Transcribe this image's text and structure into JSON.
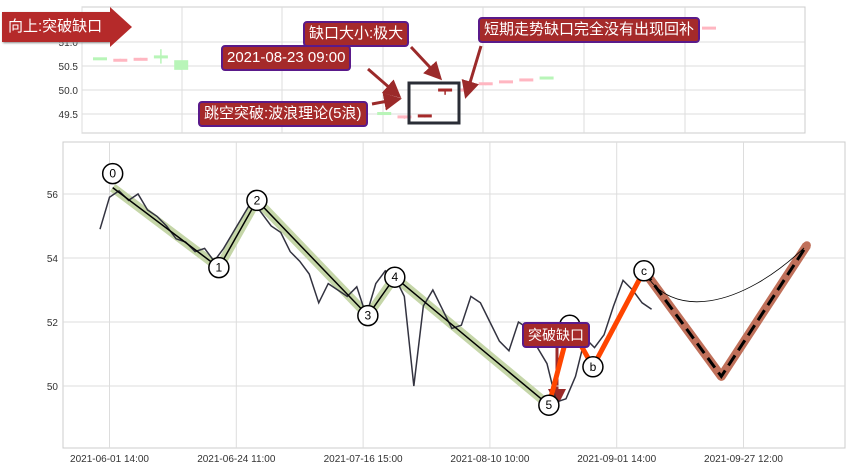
{
  "annotations": {
    "direction": "向上:突破缺口",
    "gap_size": "缺口大小:极大",
    "datetime": "2021-08-23 09:00",
    "breakout": "跳空突破:波浪理论(5浪)",
    "not_filled": "短期走势缺口完全没有出现回补",
    "breakout_small": "突破缺口"
  },
  "colors": {
    "up": "#ffb6c1",
    "down": "#b8f5b8",
    "gap_candle": "#a52a2a",
    "wave_line": "#000000",
    "wave_band": "#c5d6a8",
    "abc_line": "#ff4500",
    "projection_band": "#c0705a",
    "price_line": "#333340"
  },
  "chart_data": [
    {
      "type": "candlestick",
      "yticks": [
        51.0,
        50.5,
        50.0,
        49.5
      ],
      "ylim": [
        49.3,
        51.7
      ],
      "candles": [
        {
          "i": 0,
          "o": 50.65,
          "h": 50.67,
          "l": 50.63,
          "c": 50.66,
          "dir": "down"
        },
        {
          "i": 1,
          "o": 50.62,
          "h": 50.65,
          "l": 50.6,
          "c": 50.63,
          "dir": "up"
        },
        {
          "i": 2,
          "o": 50.64,
          "h": 50.67,
          "l": 50.62,
          "c": 50.65,
          "dir": "up"
        },
        {
          "i": 3,
          "o": 50.7,
          "h": 50.85,
          "l": 50.55,
          "c": 50.69,
          "dir": "down"
        },
        {
          "i": 4,
          "o": 50.6,
          "h": 50.6,
          "l": 50.42,
          "c": 50.42,
          "dir": "down"
        },
        {
          "i": 14,
          "o": 49.52,
          "h": 49.53,
          "l": 49.48,
          "c": 49.49,
          "dir": "down"
        },
        {
          "i": 15,
          "o": 49.44,
          "h": 49.47,
          "l": 49.4,
          "c": 49.45,
          "dir": "up"
        },
        {
          "i": 16,
          "o": 49.46,
          "h": 49.48,
          "l": 49.43,
          "c": 49.47,
          "dir": "gap"
        },
        {
          "i": 17,
          "o": 49.98,
          "h": 50.02,
          "l": 49.9,
          "c": 50.01,
          "dir": "gap"
        },
        {
          "i": 18,
          "o": 49.99,
          "h": 50.02,
          "l": 49.98,
          "c": 50.01,
          "dir": "up"
        },
        {
          "i": 19,
          "o": 50.1,
          "h": 50.14,
          "l": 50.1,
          "c": 50.14,
          "dir": "up"
        },
        {
          "i": 20,
          "o": 50.17,
          "h": 50.19,
          "l": 50.16,
          "c": 50.18,
          "dir": "up"
        },
        {
          "i": 21,
          "o": 50.21,
          "h": 50.23,
          "l": 50.2,
          "c": 50.22,
          "dir": "up"
        },
        {
          "i": 22,
          "o": 50.26,
          "h": 50.27,
          "l": 50.24,
          "c": 50.25,
          "dir": "down"
        },
        {
          "i": 30,
          "o": 51.29,
          "h": 51.31,
          "l": 51.28,
          "c": 51.3,
          "dir": "up"
        }
      ]
    },
    {
      "type": "line",
      "yticks": [
        56,
        54,
        52,
        50
      ],
      "ylim": [
        48.2,
        57.6
      ],
      "xtick_labels": [
        {
          "i": 3,
          "label": "2021-06-01 14:00"
        },
        {
          "i": 43,
          "label": "2021-06-24 11:00"
        },
        {
          "i": 83,
          "label": "2021-07-16 15:00"
        },
        {
          "i": 123,
          "label": "2021-08-10 10:00"
        },
        {
          "i": 163,
          "label": "2021-09-01 14:00"
        },
        {
          "i": 203,
          "label": "2021-09-27 12:00"
        }
      ],
      "price": [
        [
          0,
          54.9
        ],
        [
          3,
          55.9
        ],
        [
          6,
          56.1
        ],
        [
          9,
          55.8
        ],
        [
          12,
          56.0
        ],
        [
          15,
          55.5
        ],
        [
          18,
          55.3
        ],
        [
          21,
          55.0
        ],
        [
          24,
          54.6
        ],
        [
          27,
          54.5
        ],
        [
          30,
          54.2
        ],
        [
          33,
          54.3
        ],
        [
          36,
          53.9
        ],
        [
          39,
          54.3
        ],
        [
          42,
          54.8
        ],
        [
          45,
          55.3
        ],
        [
          48,
          55.8
        ],
        [
          51,
          55.4
        ],
        [
          54,
          55.0
        ],
        [
          57,
          54.8
        ],
        [
          60,
          54.2
        ],
        [
          63,
          53.9
        ],
        [
          66,
          53.5
        ],
        [
          69,
          52.6
        ],
        [
          72,
          53.2
        ],
        [
          75,
          53.0
        ],
        [
          78,
          52.8
        ],
        [
          81,
          53.1
        ],
        [
          84,
          52.2
        ],
        [
          87,
          53.2
        ],
        [
          90,
          53.6
        ],
        [
          93,
          53.4
        ],
        [
          96,
          52.8
        ],
        [
          99,
          50.0
        ],
        [
          102,
          52.5
        ],
        [
          105,
          53.0
        ],
        [
          108,
          52.4
        ],
        [
          111,
          51.8
        ],
        [
          114,
          51.9
        ],
        [
          117,
          52.8
        ],
        [
          120,
          52.6
        ],
        [
          123,
          52.0
        ],
        [
          126,
          51.4
        ],
        [
          129,
          51.1
        ],
        [
          132,
          52.0
        ],
        [
          135,
          51.8
        ],
        [
          138,
          51.2
        ],
        [
          141,
          50.7
        ],
        [
          144,
          49.5
        ],
        [
          147,
          49.6
        ],
        [
          150,
          50.3
        ],
        [
          153,
          51.5
        ],
        [
          156,
          51.2
        ],
        [
          159,
          51.6
        ],
        [
          162,
          52.5
        ],
        [
          165,
          53.3
        ],
        [
          168,
          53.0
        ],
        [
          171,
          52.6
        ],
        [
          174,
          52.4
        ]
      ],
      "waves": [
        {
          "label": "0",
          "i": 4,
          "p": 56.2
        },
        {
          "label": "1",
          "i": 37.5,
          "p": 53.7
        },
        {
          "label": "2",
          "i": 49.5,
          "p": 55.8
        },
        {
          "label": "3",
          "i": 84.5,
          "p": 52.2
        },
        {
          "label": "4",
          "i": 93,
          "p": 53.4
        },
        {
          "label": "5",
          "i": 141.6,
          "p": 49.4
        }
      ],
      "abc": [
        {
          "label": "5",
          "i": 141.6,
          "p": 49.4
        },
        {
          "label": "a",
          "i": 148.2,
          "p": 51.9
        },
        {
          "label": "b",
          "i": 155.5,
          "p": 50.6
        },
        {
          "label": "c",
          "i": 171.6,
          "p": 53.6
        }
      ],
      "projection": [
        {
          "i": 171.6,
          "p": 53.6
        },
        {
          "i": 196,
          "p": 50.3
        },
        {
          "i": 223,
          "p": 54.4
        }
      ]
    }
  ]
}
